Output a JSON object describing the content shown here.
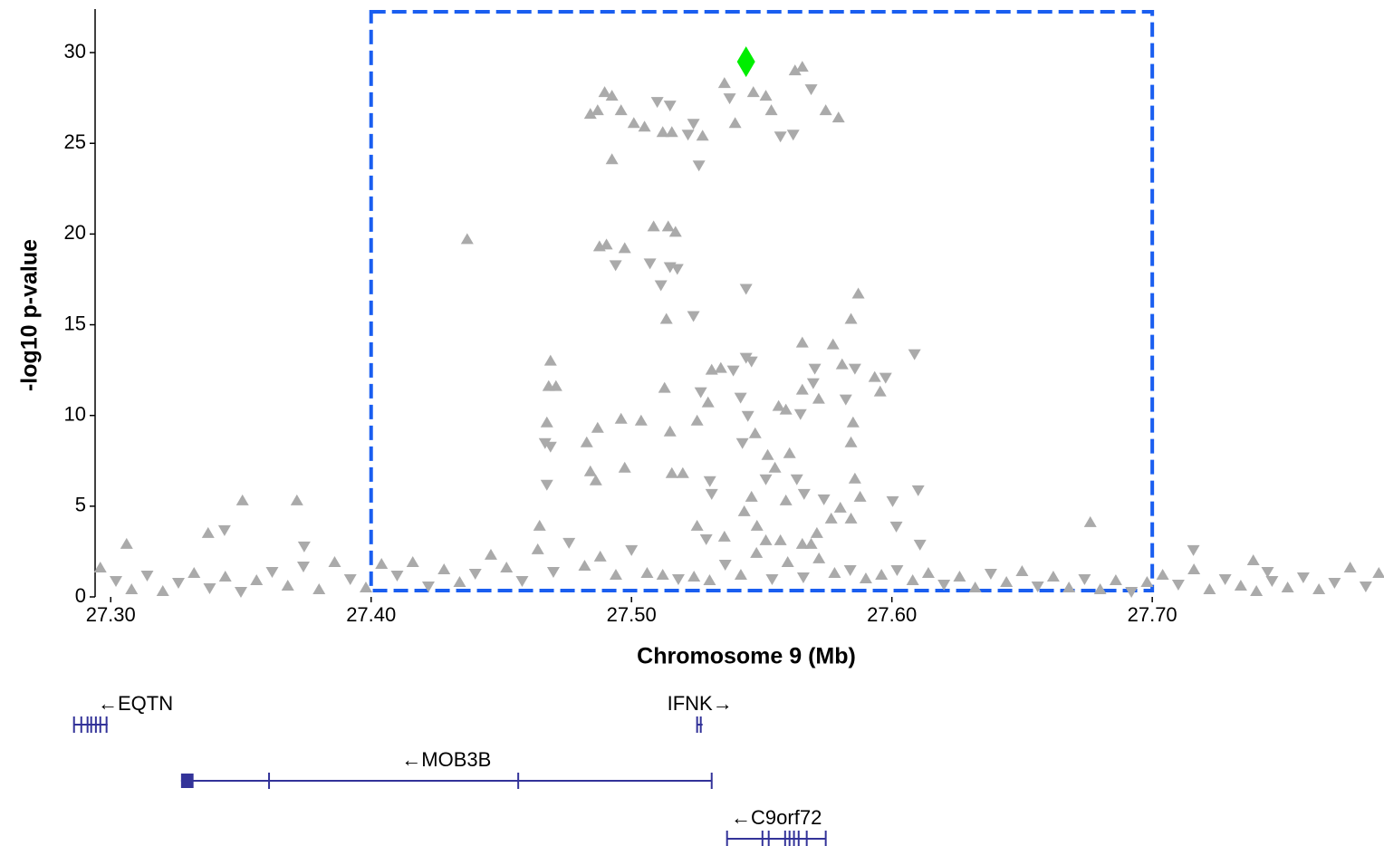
{
  "chart_data": {
    "type": "scatter",
    "x_label": "Chromosome 9 (Mb)",
    "y_label": "-log10 p-value",
    "xlim": [
      27.294,
      27.789
    ],
    "ylim": [
      0,
      32.4
    ],
    "xticks": [
      {
        "value": 27.3,
        "label": "27.30"
      },
      {
        "value": 27.4,
        "label": "27.40"
      },
      {
        "value": 27.5,
        "label": "27.50"
      },
      {
        "value": 27.6,
        "label": "27.60"
      },
      {
        "value": 27.7,
        "label": "27.70"
      }
    ],
    "yticks": [
      0,
      5,
      10,
      15,
      20,
      25,
      30
    ],
    "highlight": {
      "xlim": [
        27.4,
        27.7
      ],
      "ylim": [
        0.35,
        32.25
      ],
      "color": "#1a5ef0"
    },
    "series": [
      {
        "color": "#aaaaaa",
        "x": [
          27.4842,
          27.487,
          27.4897,
          27.4925,
          27.496,
          27.5009,
          27.505,
          27.5099,
          27.5148,
          27.512,
          27.5155,
          27.5217,
          27.5238,
          27.5273,
          27.5259,
          27.4925,
          27.5357,
          27.5377,
          27.5398,
          27.5468,
          27.5516,
          27.5537,
          27.5572,
          27.5621,
          27.5628,
          27.5656,
          27.569,
          27.5746,
          27.5795,
          27.4369,
          27.4877,
          27.4904,
          27.4939,
          27.4974,
          27.5085,
          27.5141,
          27.5169,
          27.5071,
          27.5148,
          27.5176,
          27.5113,
          27.544,
          27.5134,
          27.5238,
          27.5871,
          27.5843,
          27.6087,
          27.4689,
          27.4682,
          27.471,
          27.4675,
          27.4668,
          27.4689,
          27.487,
          27.496,
          27.5037,
          27.4828,
          27.4974,
          27.4842,
          27.4863,
          27.4675,
          27.5127,
          27.5148,
          27.5252,
          27.5155,
          27.5197,
          27.5308,
          27.5343,
          27.5391,
          27.5294,
          27.5266,
          27.5419,
          27.544,
          27.5461,
          27.5447,
          27.5565,
          27.5593,
          27.5656,
          27.5649,
          27.5698,
          27.5719,
          27.5704,
          27.5774,
          27.5809,
          27.5823,
          27.5851,
          27.5843,
          27.5858,
          27.5934,
          27.5955,
          27.5976,
          27.5426,
          27.5475,
          27.5523,
          27.5607,
          27.5551,
          27.5516,
          27.5635,
          27.5593,
          27.5663,
          27.5739,
          27.5802,
          27.5858,
          27.5878,
          27.5843,
          27.5767,
          27.5712,
          27.5461,
          27.5308,
          27.5301,
          27.5287,
          27.5252,
          27.5357,
          27.5433,
          27.5482,
          27.5516,
          27.5572,
          27.5656,
          27.569,
          27.6003,
          27.6017,
          27.6101,
          27.6108,
          27.6762,
          27.4647,
          27.5656,
          27.3061,
          27.3374,
          27.3437,
          27.3506,
          27.3715,
          27.3743,
          27.7158,
          27.7388,
          27.7443,
          27.296,
          27.302,
          27.308,
          27.314,
          27.32,
          27.326,
          27.332,
          27.338,
          27.344,
          27.35,
          27.356,
          27.362,
          27.368,
          27.374,
          27.38,
          27.386,
          27.392,
          27.398,
          27.404,
          27.41,
          27.416,
          27.422,
          27.428,
          27.434,
          27.44,
          27.446,
          27.452,
          27.458,
          27.464,
          27.47,
          27.476,
          27.482,
          27.488,
          27.494,
          27.5,
          27.506,
          27.512,
          27.518,
          27.524,
          27.53,
          27.536,
          27.542,
          27.548,
          27.554,
          27.56,
          27.566,
          27.572,
          27.578,
          27.584,
          27.59,
          27.596,
          27.602,
          27.608,
          27.614,
          27.62,
          27.626,
          27.632,
          27.638,
          27.644,
          27.65,
          27.656,
          27.662,
          27.668,
          27.674,
          27.68,
          27.686,
          27.692,
          27.698,
          27.704,
          27.71,
          27.716,
          27.722,
          27.728,
          27.734,
          27.74,
          27.746,
          27.752,
          27.758,
          27.764,
          27.77,
          27.776,
          27.782,
          27.787
        ],
        "values": [
          26.6,
          26.8,
          27.8,
          27.6,
          26.8,
          26.1,
          25.9,
          27.3,
          27.1,
          25.6,
          25.6,
          25.5,
          26.1,
          25.4,
          23.8,
          24.1,
          28.3,
          27.5,
          26.1,
          27.8,
          27.6,
          26.8,
          25.4,
          25.5,
          29.0,
          29.2,
          28.0,
          26.8,
          26.4,
          19.7,
          19.3,
          19.4,
          18.3,
          19.2,
          20.4,
          20.4,
          20.1,
          18.4,
          18.2,
          18.1,
          17.2,
          17.0,
          15.3,
          15.5,
          16.7,
          15.3,
          13.4,
          13.0,
          11.6,
          11.6,
          9.6,
          8.5,
          8.3,
          9.3,
          9.8,
          9.7,
          8.5,
          7.1,
          6.9,
          6.4,
          6.2,
          11.5,
          9.1,
          9.7,
          6.8,
          6.8,
          12.5,
          12.6,
          12.5,
          10.7,
          11.3,
          11.0,
          13.2,
          13.0,
          10.0,
          10.5,
          10.3,
          11.4,
          10.1,
          11.8,
          10.9,
          12.6,
          13.9,
          12.8,
          10.9,
          9.6,
          8.5,
          12.6,
          12.1,
          11.3,
          12.1,
          8.5,
          9.0,
          7.8,
          7.9,
          7.1,
          6.5,
          6.5,
          5.3,
          5.7,
          5.4,
          4.9,
          6.5,
          5.5,
          4.3,
          4.3,
          3.5,
          5.5,
          5.7,
          6.4,
          3.2,
          3.9,
          3.3,
          4.7,
          3.9,
          3.1,
          3.1,
          2.9,
          2.9,
          5.3,
          3.9,
          5.9,
          2.9,
          4.1,
          3.9,
          14.0,
          2.9,
          3.5,
          3.7,
          5.3,
          5.3,
          2.8,
          2.6,
          2.0,
          1.4,
          1.6,
          0.9,
          0.4,
          1.2,
          0.3,
          0.8,
          1.3,
          0.5,
          1.1,
          0.3,
          0.9,
          1.4,
          0.6,
          1.7,
          0.4,
          1.9,
          1.0,
          0.5,
          1.8,
          1.2,
          1.9,
          0.6,
          1.5,
          0.8,
          1.3,
          2.3,
          1.6,
          0.9,
          2.6,
          1.4,
          3.0,
          1.7,
          2.2,
          1.2,
          2.6,
          1.3,
          1.2,
          1.0,
          1.1,
          0.9,
          1.8,
          1.2,
          2.4,
          1.0,
          1.9,
          1.1,
          2.1,
          1.3,
          1.5,
          1.0,
          1.2,
          1.5,
          0.9,
          1.3,
          0.7,
          1.1,
          0.5,
          1.3,
          0.8,
          1.4,
          0.6,
          1.1,
          0.5,
          1.0,
          0.4,
          0.9,
          0.3,
          0.8,
          1.2,
          0.7,
          1.5,
          0.4,
          1.0,
          0.6,
          0.3,
          0.9,
          0.5,
          1.1,
          0.4,
          0.8,
          1.6,
          0.6,
          1.3
        ],
        "markers": [
          "up",
          "up",
          "up",
          "up",
          "up",
          "up",
          "up",
          "down",
          "down",
          "up",
          "up",
          "down",
          "down",
          "up",
          "down",
          "up",
          "up",
          "down",
          "up",
          "up",
          "up",
          "up",
          "down",
          "down",
          "up",
          "up",
          "down",
          "up",
          "up",
          "up",
          "up",
          "up",
          "down",
          "up",
          "up",
          "up",
          "up",
          "down",
          "down",
          "down",
          "down",
          "down",
          "up",
          "down",
          "up",
          "up",
          "down",
          "up",
          "up",
          "up",
          "up",
          "down",
          "down",
          "up",
          "up",
          "up",
          "up",
          "up",
          "up",
          "up",
          "down",
          "up",
          "up",
          "up",
          "up",
          "up",
          "up",
          "up",
          "down",
          "up",
          "down",
          "down",
          "down",
          "down",
          "down",
          "up",
          "up",
          "up",
          "down",
          "down",
          "up",
          "down",
          "up",
          "up",
          "down",
          "up",
          "up",
          "down",
          "up",
          "up",
          "down",
          "down",
          "up",
          "up",
          "up",
          "up",
          "down",
          "down",
          "up",
          "down",
          "down",
          "up",
          "up",
          "up",
          "up",
          "up",
          "up",
          "up",
          "down",
          "down",
          "down",
          "up",
          "up",
          "up",
          "up",
          "up",
          "up",
          "up",
          "up",
          "down",
          "down",
          "down",
          "down",
          "up",
          "up",
          "up",
          "up",
          "up",
          "down",
          "up",
          "up",
          "down",
          "down",
          "up",
          "down",
          "up",
          "down",
          "up",
          "down",
          "up",
          "down",
          "up",
          "down",
          "up",
          "down",
          "up",
          "down",
          "up",
          "down",
          "up",
          "up",
          "down",
          "up",
          "up",
          "down",
          "up",
          "down",
          "up",
          "up",
          "down",
          "up",
          "up",
          "down",
          "up",
          "down",
          "down",
          "up",
          "up",
          "up",
          "down",
          "up",
          "up",
          "down",
          "up",
          "up",
          "down",
          "up",
          "up",
          "down",
          "up",
          "down",
          "up",
          "up",
          "down",
          "up",
          "up",
          "down",
          "up",
          "up",
          "down",
          "up",
          "up",
          "down",
          "up",
          "up",
          "down",
          "up",
          "up",
          "down",
          "up",
          "up",
          "down",
          "up",
          "up",
          "down",
          "up",
          "up",
          "down",
          "up",
          "up",
          "down",
          "up",
          "down",
          "up",
          "down",
          "up",
          "down",
          "up"
        ]
      },
      {
        "color": "#00ee00",
        "x": [
          27.544
        ],
        "values": [
          29.5
        ],
        "markers": [
          "diamond"
        ]
      }
    ],
    "genes": [
      {
        "label": "←EQTN",
        "start": 27.2859,
        "end": 27.2988,
        "exons": [
          [
            27.2859,
            27.2866
          ],
          [
            27.2887,
            27.2887
          ],
          [
            27.2911,
            27.2911
          ],
          [
            27.2925,
            27.2925
          ],
          [
            27.2943,
            27.2943
          ],
          [
            27.296,
            27.296
          ],
          [
            27.2984,
            27.2988
          ]
        ]
      },
      {
        "label": "IFNK→",
        "start": 27.5252,
        "end": 27.5273,
        "exons": [
          [
            27.5252,
            27.5259
          ],
          [
            27.5266,
            27.5273
          ]
        ]
      },
      {
        "label": "←MOB3B",
        "start": 27.327,
        "end": 27.5308,
        "exons": [
          [
            27.327,
            27.3318
          ],
          [
            27.3608,
            27.3608
          ],
          [
            27.4565,
            27.4565
          ],
          [
            27.5308,
            27.5308
          ]
        ]
      },
      {
        "label": "←C9orf72",
        "start": 27.5367,
        "end": 27.5746,
        "exons": [
          [
            27.5367,
            27.5367
          ],
          [
            27.5503,
            27.5503
          ],
          [
            27.5527,
            27.5527
          ],
          [
            27.559,
            27.559
          ],
          [
            27.5607,
            27.5607
          ],
          [
            27.5624,
            27.5624
          ],
          [
            27.5642,
            27.5642
          ],
          [
            27.5673,
            27.5673
          ],
          [
            27.5746,
            27.5746
          ]
        ]
      }
    ]
  }
}
